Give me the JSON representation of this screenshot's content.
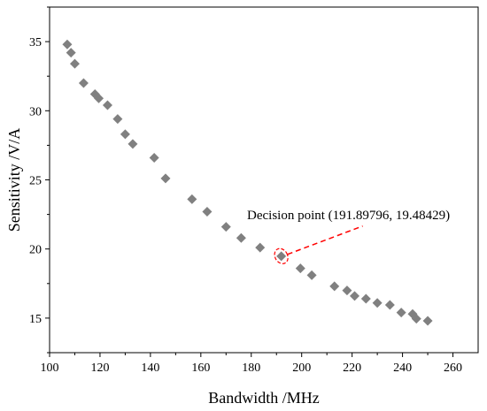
{
  "chart_data": {
    "type": "scatter",
    "xlabel": "Bandwidth /MHz",
    "ylabel": "Sensitivity /V/A",
    "xlim": [
      100,
      270
    ],
    "ylim": [
      12.5,
      37.5
    ],
    "x_ticks": [
      100,
      120,
      140,
      160,
      180,
      200,
      220,
      240,
      260
    ],
    "y_ticks": [
      15,
      20,
      25,
      30,
      35
    ],
    "grid": false,
    "marker": "diamond",
    "marker_color": "#808080",
    "points": [
      {
        "x": 107.0,
        "y": 34.8
      },
      {
        "x": 108.5,
        "y": 34.2
      },
      {
        "x": 110.0,
        "y": 33.4
      },
      {
        "x": 113.5,
        "y": 32.0
      },
      {
        "x": 118.0,
        "y": 31.2
      },
      {
        "x": 119.5,
        "y": 30.9
      },
      {
        "x": 123.0,
        "y": 30.4
      },
      {
        "x": 127.0,
        "y": 29.4
      },
      {
        "x": 130.0,
        "y": 28.3
      },
      {
        "x": 133.0,
        "y": 27.6
      },
      {
        "x": 141.5,
        "y": 26.6
      },
      {
        "x": 146.0,
        "y": 25.1
      },
      {
        "x": 156.5,
        "y": 23.6
      },
      {
        "x": 162.5,
        "y": 22.7
      },
      {
        "x": 170.0,
        "y": 21.6
      },
      {
        "x": 176.0,
        "y": 20.8
      },
      {
        "x": 183.5,
        "y": 20.1
      },
      {
        "x": 191.9,
        "y": 19.48
      },
      {
        "x": 199.5,
        "y": 18.6
      },
      {
        "x": 204.0,
        "y": 18.1
      },
      {
        "x": 213.0,
        "y": 17.3
      },
      {
        "x": 218.0,
        "y": 17.0
      },
      {
        "x": 221.0,
        "y": 16.6
      },
      {
        "x": 225.5,
        "y": 16.4
      },
      {
        "x": 230.0,
        "y": 16.1
      },
      {
        "x": 235.0,
        "y": 15.95
      },
      {
        "x": 239.5,
        "y": 15.4
      },
      {
        "x": 244.0,
        "y": 15.3
      },
      {
        "x": 245.5,
        "y": 14.95
      },
      {
        "x": 250.0,
        "y": 14.8
      }
    ],
    "annotation": {
      "text": "Decision point (191.89796, 19.48429)",
      "x": 191.89796,
      "y": 19.48429,
      "color": "#ff0000"
    }
  }
}
